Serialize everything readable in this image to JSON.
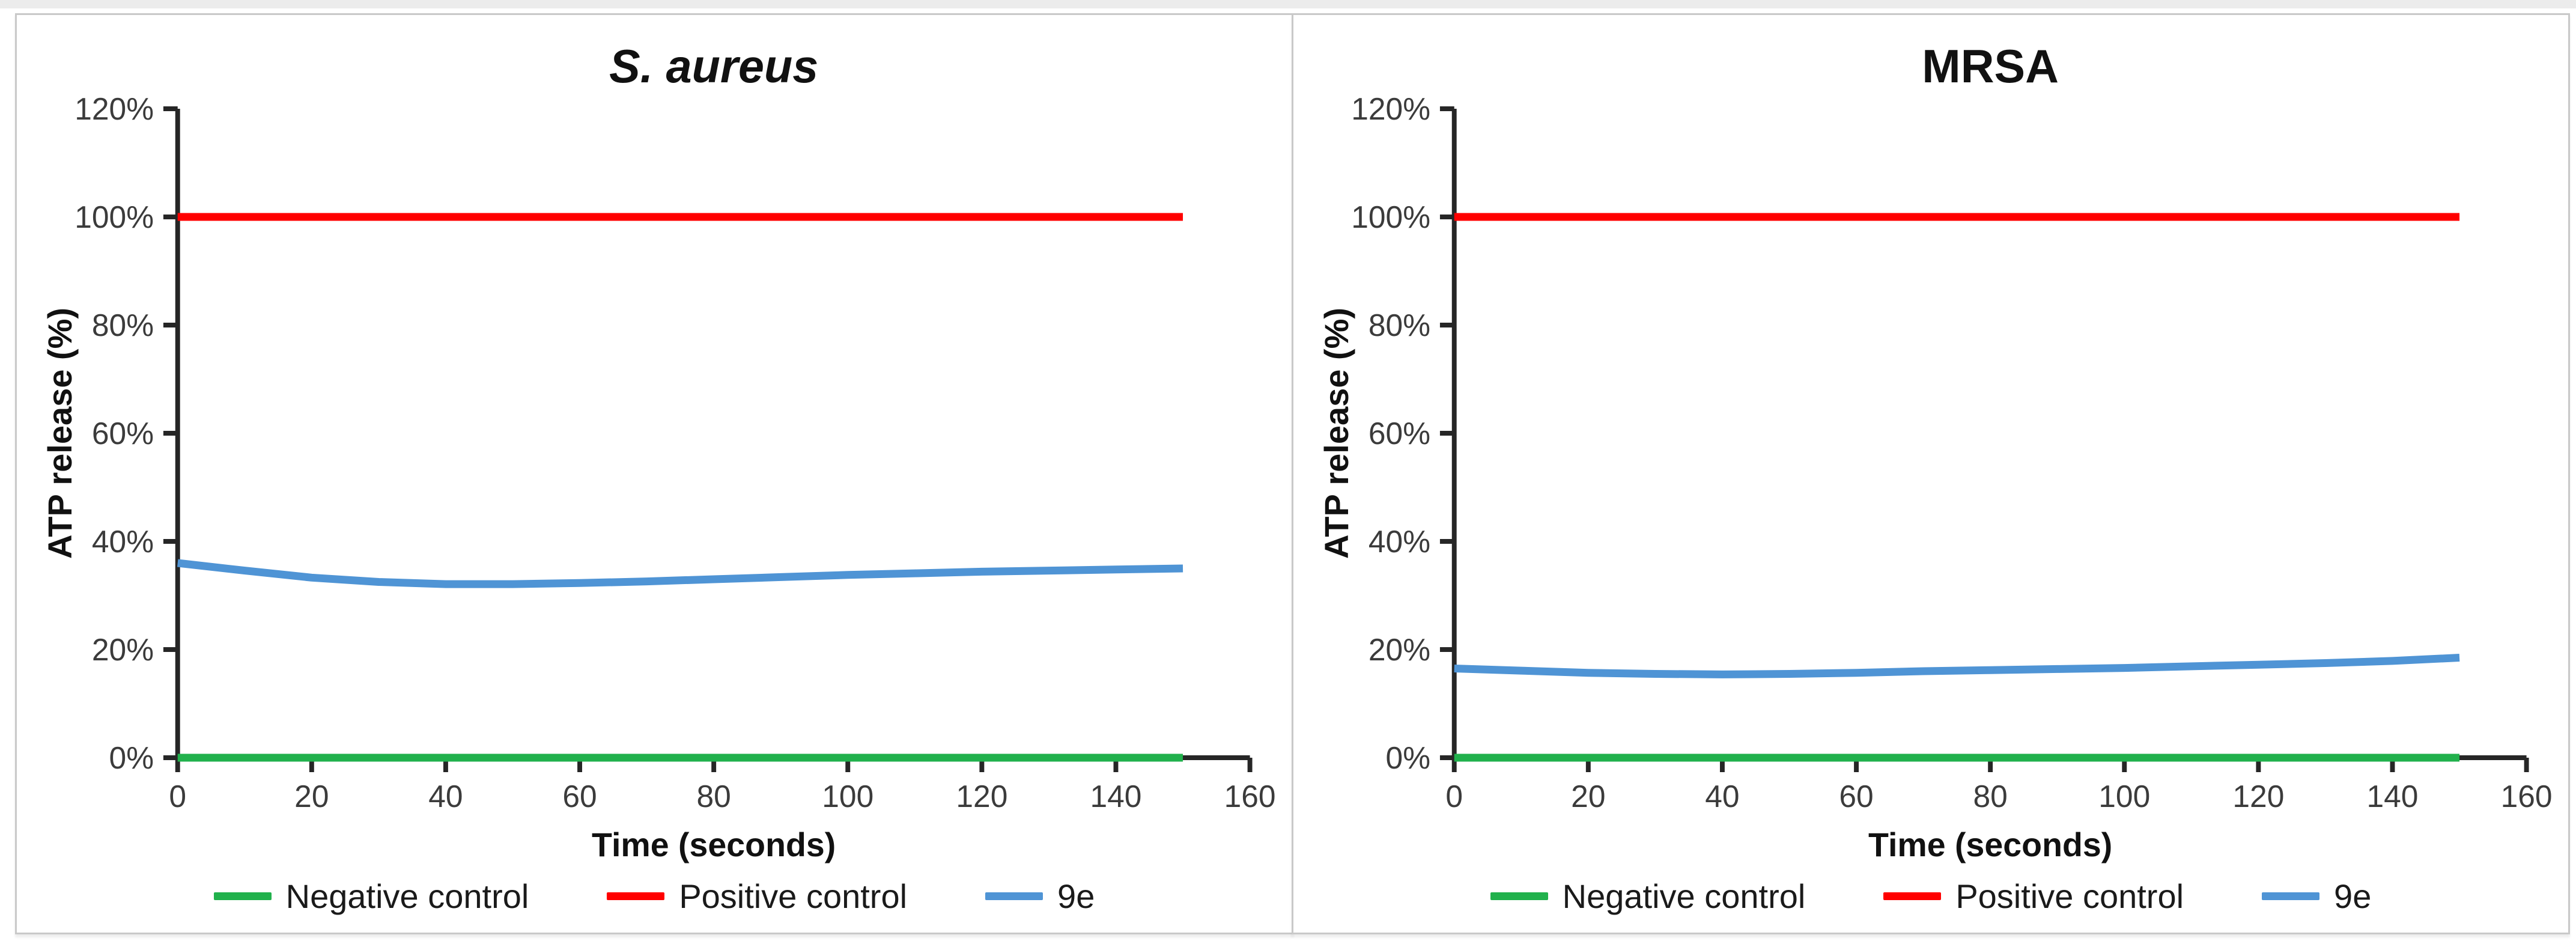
{
  "figure": {
    "background_color": "#ffffff",
    "panel_border_color": "#c9c9c9",
    "axis_color": "#262626"
  },
  "chart_data": [
    {
      "type": "line",
      "title": "S. aureus",
      "title_italic": true,
      "xlabel": "Time (seconds)",
      "ylabel": "ATP release (%)",
      "xlim": [
        0,
        160
      ],
      "ylim_pct": [
        0,
        120
      ],
      "grid": false,
      "legend_position": "bottom",
      "x_ticks": [
        0,
        20,
        40,
        60,
        80,
        100,
        120,
        140,
        160
      ],
      "y_tick_values": [
        0,
        20,
        40,
        60,
        80,
        100,
        120
      ],
      "y_tick_labels": [
        "0%",
        "20%",
        "40%",
        "60%",
        "80%",
        "100%",
        "120%"
      ],
      "series": [
        {
          "name": "Negative control",
          "color": "#21B14C",
          "x": [
            0,
            150
          ],
          "y": [
            0,
            0
          ]
        },
        {
          "name": "Positive control",
          "color": "#FF0000",
          "x": [
            0,
            150
          ],
          "y": [
            100,
            100
          ]
        },
        {
          "name": "9e",
          "color": "#4F94D5",
          "x": [
            0,
            10,
            20,
            30,
            40,
            50,
            60,
            70,
            80,
            90,
            100,
            110,
            120,
            130,
            140,
            150
          ],
          "y": [
            36,
            34.6,
            33.3,
            32.5,
            32.1,
            32.1,
            32.3,
            32.6,
            33,
            33.4,
            33.8,
            34.1,
            34.4,
            34.6,
            34.8,
            35
          ]
        }
      ]
    },
    {
      "type": "line",
      "title": "MRSA",
      "title_italic": false,
      "xlabel": "Time (seconds)",
      "ylabel": "ATP release (%)",
      "xlim": [
        0,
        160
      ],
      "ylim_pct": [
        0,
        120
      ],
      "grid": false,
      "legend_position": "bottom",
      "x_ticks": [
        0,
        20,
        40,
        60,
        80,
        100,
        120,
        140,
        160
      ],
      "y_tick_values": [
        0,
        20,
        40,
        60,
        80,
        100,
        120
      ],
      "y_tick_labels": [
        "0%",
        "20%",
        "40%",
        "60%",
        "80%",
        "100%",
        "120%"
      ],
      "series": [
        {
          "name": "Negative control",
          "color": "#21B14C",
          "x": [
            0,
            150
          ],
          "y": [
            0,
            0
          ]
        },
        {
          "name": "Positive control",
          "color": "#FF0000",
          "x": [
            0,
            150
          ],
          "y": [
            100,
            100
          ]
        },
        {
          "name": "9e",
          "color": "#4F94D5",
          "x": [
            0,
            10,
            20,
            30,
            40,
            50,
            60,
            70,
            80,
            90,
            100,
            110,
            120,
            130,
            140,
            150
          ],
          "y": [
            16.5,
            16.1,
            15.7,
            15.5,
            15.4,
            15.5,
            15.7,
            16,
            16.2,
            16.4,
            16.6,
            16.9,
            17.2,
            17.5,
            17.9,
            18.5
          ]
        }
      ]
    }
  ]
}
